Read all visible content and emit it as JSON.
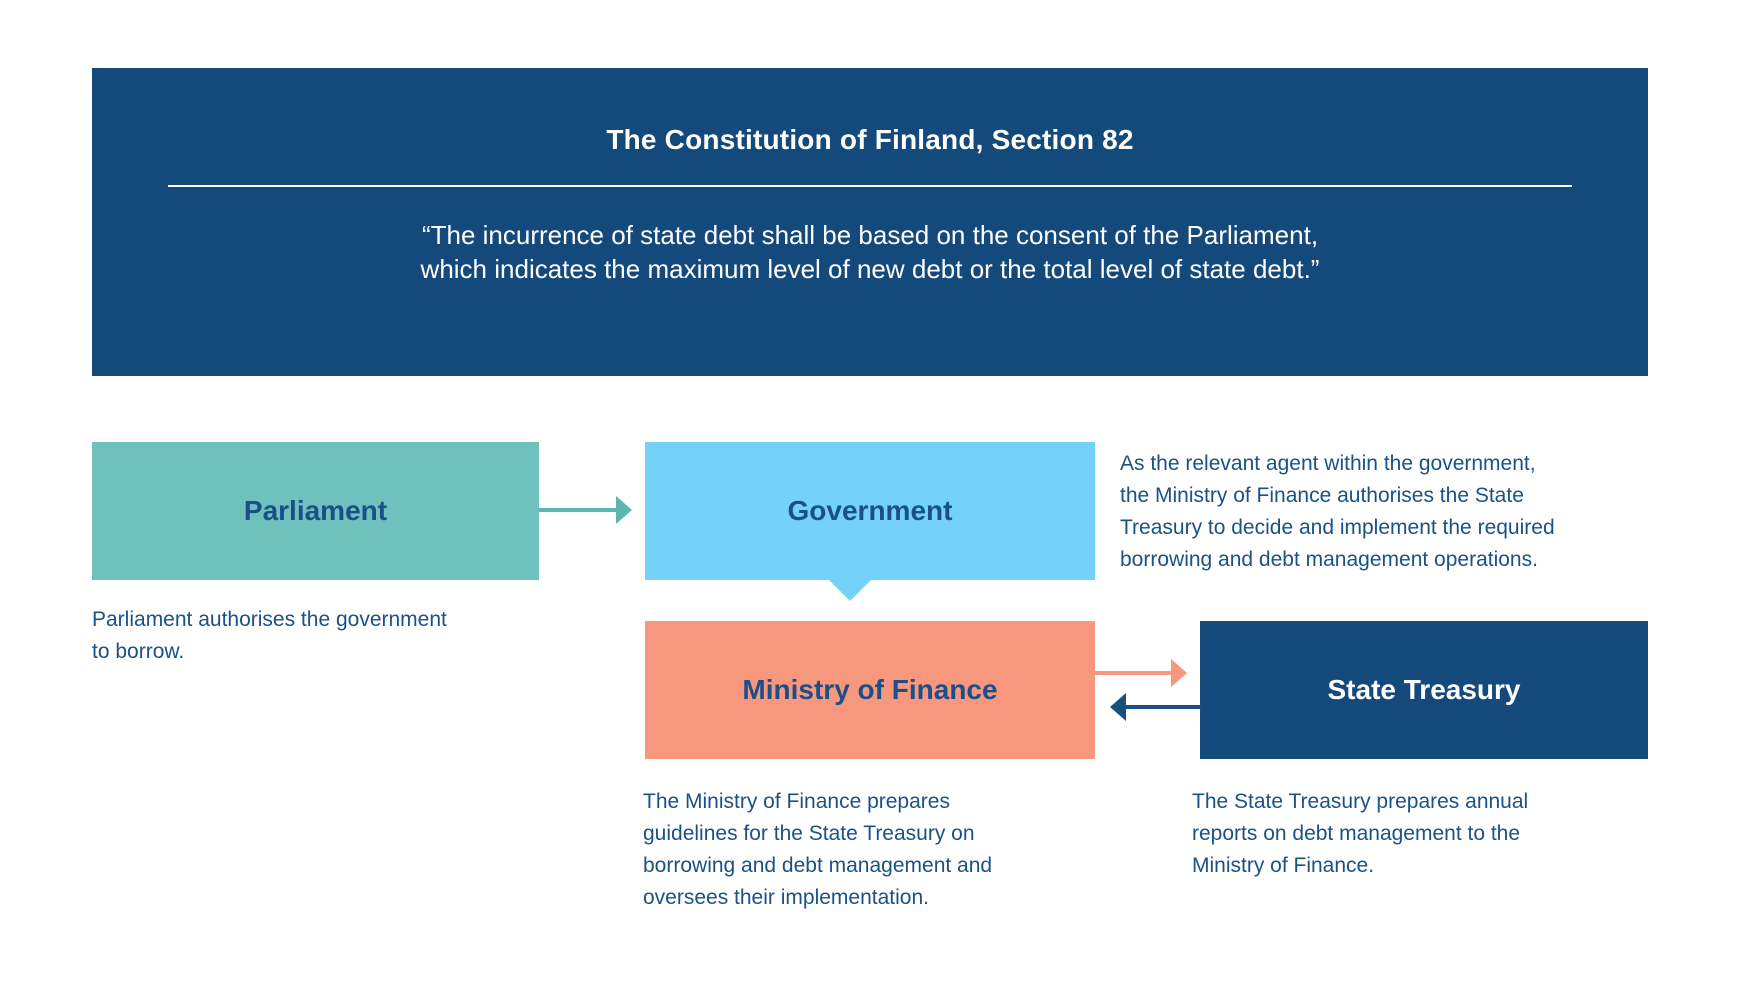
{
  "header": {
    "title": "The Constitution of Finland, Section 82",
    "quote_line1": "“The incurrence of state debt shall be based on the consent of the Parliament,",
    "quote_line2": "which indicates the maximum level of new debt or the total level of state debt.”"
  },
  "nodes": {
    "parliament": {
      "label": "Parliament",
      "color": "#6ec1bc"
    },
    "government": {
      "label": "Government",
      "color": "#74d2f8"
    },
    "ministry": {
      "label": "Ministry of Finance",
      "color": "#f6977e"
    },
    "treasury": {
      "label": "State Treasury",
      "color": "#14497c"
    }
  },
  "arrows": [
    {
      "from": "parliament",
      "to": "government",
      "color": "#5cb6b1"
    },
    {
      "from": "government",
      "to": "ministry",
      "color": "#74d2f8"
    },
    {
      "from": "ministry",
      "to": "treasury",
      "color": "#f6977e"
    },
    {
      "from": "treasury",
      "to": "ministry",
      "color": "#1c4e7f"
    }
  ],
  "descriptions": {
    "parliament": [
      "Parliament authorises the government",
      "to borrow."
    ],
    "agent": [
      "As the relevant agent within the government,",
      "the Ministry of Finance authorises the State",
      "Treasury to decide and implement the required",
      "borrowing and debt management operations."
    ],
    "ministry": [
      "The Ministry of Finance prepares",
      "guidelines for the State Treasury on",
      "borrowing and debt management and",
      "oversees their implementation."
    ],
    "treasury": [
      "The State Treasury prepares annual",
      "reports on debt management to the",
      "Ministry of Finance."
    ]
  },
  "colors": {
    "navy": "#14497c",
    "teal": "#6ec1bc",
    "teal_arrow": "#5cb6b1",
    "light_blue": "#74d2f8",
    "salmon": "#f6977e",
    "body_text_blue": "#1a5288",
    "heading_blue": "#1a4f88",
    "white": "#ffffff"
  }
}
